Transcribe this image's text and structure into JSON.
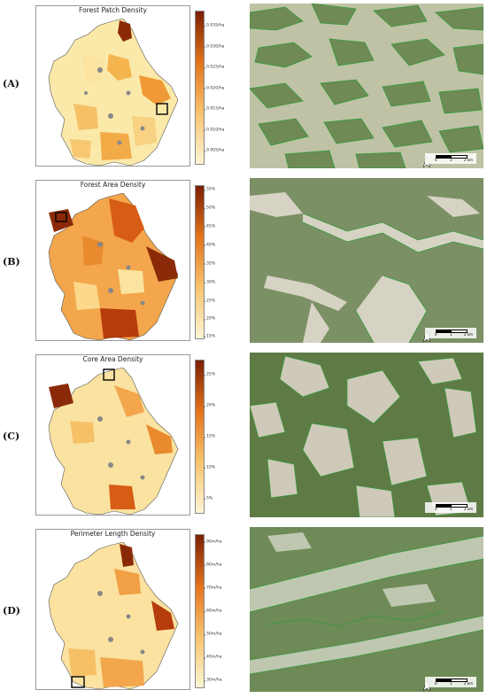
{
  "panels": [
    {
      "label": "(A)",
      "title": "Forest Patch Density",
      "ticks": [
        "0.035/ha",
        "0.030/ha",
        "0.025/ha",
        "0.020/ha",
        "0.015/ha",
        "0.010/ha",
        "0.005/ha"
      ],
      "colorbar": [
        "#7a1f03",
        "#e3731b",
        "#f8c46e",
        "#fdf5d4"
      ],
      "photo_tint": "#bfc2a4",
      "scalebar": [
        "0",
        "1",
        "2 km"
      ]
    },
    {
      "label": "(B)",
      "title": "Forest Area Density",
      "ticks": [
        "55%",
        "50%",
        "45%",
        "40%",
        "35%",
        "30%",
        "25%",
        "20%",
        "15%"
      ],
      "colorbar": [
        "#7a1f03",
        "#e3731b",
        "#f8c46e",
        "#fdf5d4"
      ],
      "photo_tint": "#7f9369",
      "scalebar": [
        "0",
        "1",
        "2 km"
      ]
    },
    {
      "label": "(C)",
      "title": "Core Area Density",
      "ticks": [
        "25%",
        "20%",
        "15%",
        "10%",
        "5%"
      ],
      "colorbar": [
        "#7a1f03",
        "#e3731b",
        "#f8c46e",
        "#fdf5d4"
      ],
      "photo_tint": "#a7ab8e",
      "scalebar": [
        "0",
        "1",
        "2 km"
      ]
    },
    {
      "label": "(D)",
      "title": "Perimeter Length Density",
      "ticks": [
        "90m/ha",
        "80m/ha",
        "70m/ha",
        "60m/ha",
        "50m/ha",
        "40m/ha",
        "30m/ha"
      ],
      "colorbar": [
        "#7a1f03",
        "#e3731b",
        "#f8c46e",
        "#fdf5d4"
      ],
      "photo_tint": "#869675",
      "scalebar": [
        "0",
        "1",
        "2 km"
      ]
    }
  ]
}
